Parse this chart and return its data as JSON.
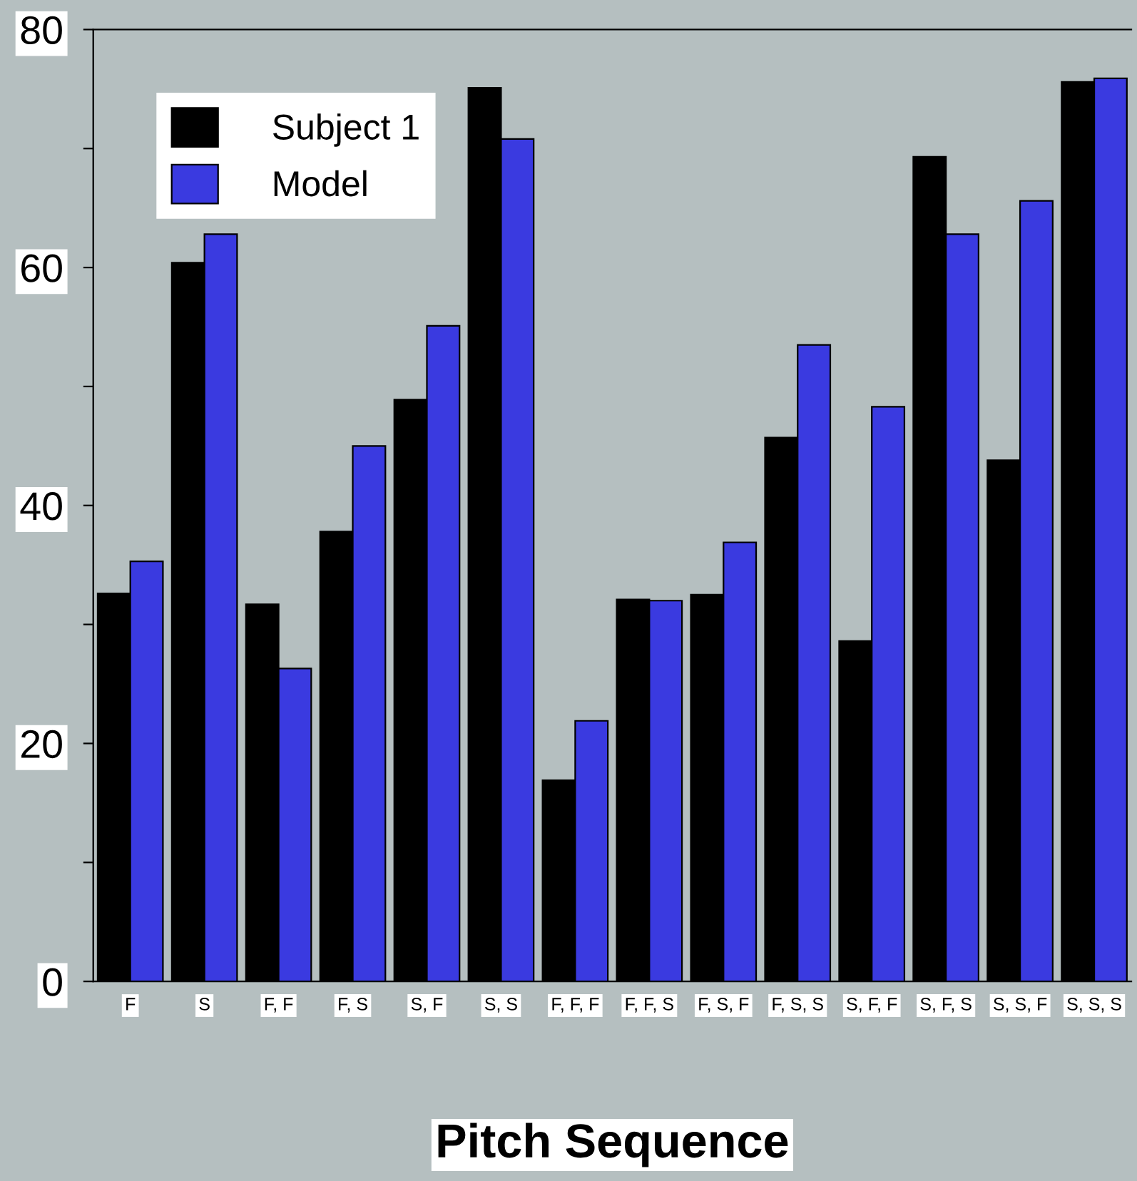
{
  "chart_data": {
    "type": "bar",
    "xlabel": "Pitch Sequence",
    "categories": [
      "F",
      "S",
      "F, F",
      "F, S",
      "S, F",
      "S, S",
      "F, F, F",
      "F, F, S",
      "F, S, F",
      "F, S, S",
      "S, F, F",
      "S, F, S",
      "S, S, F",
      "S, S, S"
    ],
    "series": [
      {
        "name": "Subject 1",
        "color": "#000000",
        "values": [
          32.6,
          60.4,
          31.7,
          37.8,
          48.9,
          75.1,
          16.9,
          32.1,
          32.5,
          45.7,
          28.6,
          69.3,
          43.8,
          75.6
        ]
      },
      {
        "name": "Model",
        "color": "#3a3ae0",
        "values": [
          35.3,
          62.8,
          26.3,
          45.0,
          55.1,
          70.8,
          21.9,
          32.0,
          36.9,
          53.5,
          48.3,
          62.8,
          65.6,
          75.9
        ]
      }
    ],
    "ylim": [
      0,
      80
    ],
    "yticks": [
      0,
      {
        "value": 10,
        "label": null
      },
      20,
      {
        "value": 30,
        "label": null
      },
      40,
      {
        "value": 50,
        "label": null
      },
      60,
      {
        "value": 70,
        "label": null
      },
      80
    ],
    "grid": false,
    "legend": "top left"
  }
}
